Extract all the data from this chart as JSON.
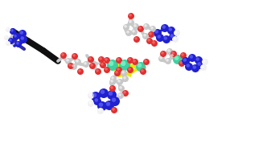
{
  "figsize": [
    3.32,
    1.89
  ],
  "dpi": 100,
  "background_color": "#ffffff",
  "image_b64": ""
}
